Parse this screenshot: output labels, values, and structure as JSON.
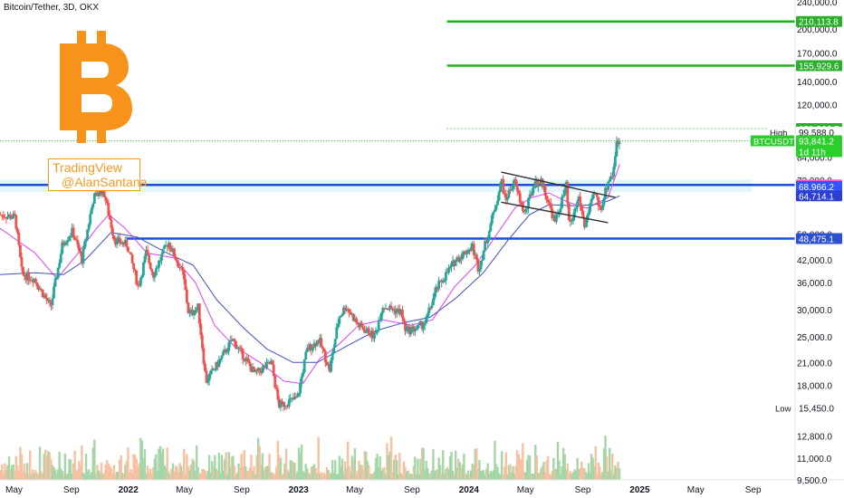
{
  "header": {
    "title": "Bitcoin/Tether, 3D, OKX"
  },
  "overlay": {
    "watermark_line1": "TradingView",
    "watermark_line2": "@AlanSantana",
    "logo": "bitcoin-logo-icon"
  },
  "colors": {
    "up": "#26a69a",
    "down": "#ef5350",
    "ema_fast": "#e040fb",
    "ema_slow": "#3f51b5",
    "support_line": "#1e4fd8",
    "target_line": "#16b816",
    "logo": "#f7931a",
    "watermark": "#f59a23",
    "volume_up": "#a5d6a7",
    "volume_down": "#f5c1a1"
  },
  "chart_data": {
    "type": "candlestick",
    "scale": "log",
    "ylim": [
      9500,
      240000
    ],
    "y_ticks": [
      "240,000.0",
      "200,000.0",
      "170,000.0",
      "140,000.0",
      "120,000.0",
      "84,000.0",
      "72,000.0",
      "50,000.0",
      "42,000.0",
      "36,000.0",
      "30,000.0",
      "25,000.0",
      "21,000.0",
      "18,000.0",
      "12,800.0",
      "11,000.0",
      "9,500.0"
    ],
    "x_ticks": [
      "May",
      "Sep",
      "2022",
      "May",
      "Sep",
      "2023",
      "May",
      "Sep",
      "2024",
      "May",
      "Sep",
      "2025",
      "May",
      "Sep"
    ],
    "price_path": [
      [
        "2021-04-01",
        57000
      ],
      [
        "2021-05-05",
        56000
      ],
      [
        "2021-05-20",
        38000
      ],
      [
        "2021-06-15",
        37000
      ],
      [
        "2021-07-20",
        30500
      ],
      [
        "2021-08-15",
        47000
      ],
      [
        "2021-09-05",
        51000
      ],
      [
        "2021-09-25",
        42000
      ],
      [
        "2021-10-20",
        64000
      ],
      [
        "2021-11-10",
        67500
      ],
      [
        "2021-12-04",
        48000
      ],
      [
        "2021-12-31",
        46500
      ],
      [
        "2022-01-24",
        35000
      ],
      [
        "2022-02-10",
        44000
      ],
      [
        "2022-02-25",
        38000
      ],
      [
        "2022-03-29",
        47500
      ],
      [
        "2022-04-30",
        38000
      ],
      [
        "2022-05-12",
        29000
      ],
      [
        "2022-06-01",
        30500
      ],
      [
        "2022-06-18",
        18500
      ],
      [
        "2022-07-15",
        21000
      ],
      [
        "2022-08-14",
        24500
      ],
      [
        "2022-09-10",
        21500
      ],
      [
        "2022-10-01",
        19400
      ],
      [
        "2022-11-05",
        21000
      ],
      [
        "2022-11-21",
        15700
      ],
      [
        "2022-12-31",
        16500
      ],
      [
        "2023-01-20",
        22800
      ],
      [
        "2023-02-15",
        24500
      ],
      [
        "2023-03-10",
        20000
      ],
      [
        "2023-03-30",
        28500
      ],
      [
        "2023-04-14",
        30800
      ],
      [
        "2023-05-10",
        27000
      ],
      [
        "2023-06-15",
        25000
      ],
      [
        "2023-07-01",
        30800
      ],
      [
        "2023-08-10",
        29500
      ],
      [
        "2023-08-20",
        26000
      ],
      [
        "2023-09-15",
        26500
      ],
      [
        "2023-10-01",
        27500
      ],
      [
        "2023-10-25",
        34500
      ],
      [
        "2023-12-05",
        42000
      ],
      [
        "2024-01-10",
        46000
      ],
      [
        "2024-01-23",
        39500
      ],
      [
        "2024-02-15",
        51500
      ],
      [
        "2024-03-13",
        72000
      ],
      [
        "2024-03-20",
        62500
      ],
      [
        "2024-04-08",
        71500
      ],
      [
        "2024-05-01",
        57000
      ],
      [
        "2024-05-21",
        70500
      ],
      [
        "2024-06-07",
        71000
      ],
      [
        "2024-07-05",
        54000
      ],
      [
        "2024-07-29",
        69000
      ],
      [
        "2024-08-05",
        52000
      ],
      [
        "2024-08-25",
        64000
      ],
      [
        "2024-09-06",
        53000
      ],
      [
        "2024-09-28",
        66000
      ],
      [
        "2024-10-10",
        59000
      ],
      [
        "2024-10-29",
        73000
      ],
      [
        "2024-11-06",
        75000
      ],
      [
        "2024-11-13",
        91000
      ],
      [
        "2024-11-19",
        94000
      ]
    ],
    "ema_fast_path": [
      [
        "2021-04-01",
        52000
      ],
      [
        "2021-06-15",
        44000
      ],
      [
        "2021-08-01",
        37000
      ],
      [
        "2021-09-10",
        43000
      ],
      [
        "2021-10-25",
        52000
      ],
      [
        "2021-11-20",
        57000
      ],
      [
        "2021-12-25",
        52000
      ],
      [
        "2022-02-10",
        44000
      ],
      [
        "2022-04-10",
        42500
      ],
      [
        "2022-05-25",
        36000
      ],
      [
        "2022-07-05",
        27000
      ],
      [
        "2022-08-15",
        23500
      ],
      [
        "2022-10-10",
        21000
      ],
      [
        "2022-12-01",
        18500
      ],
      [
        "2023-01-10",
        18200
      ],
      [
        "2023-02-15",
        21500
      ],
      [
        "2023-03-25",
        23500
      ],
      [
        "2023-05-10",
        27000
      ],
      [
        "2023-07-01",
        28000
      ],
      [
        "2023-08-30",
        27000
      ],
      [
        "2023-10-15",
        28000
      ],
      [
        "2023-12-01",
        35000
      ],
      [
        "2024-01-15",
        40500
      ],
      [
        "2024-03-01",
        50000
      ],
      [
        "2024-04-10",
        60000
      ],
      [
        "2024-05-15",
        64000
      ],
      [
        "2024-06-20",
        66000
      ],
      [
        "2024-08-01",
        62000
      ],
      [
        "2024-09-10",
        59500
      ],
      [
        "2024-10-10",
        62500
      ],
      [
        "2024-10-25",
        64000
      ],
      [
        "2024-11-19",
        80000
      ]
    ],
    "ema_slow_path": [
      [
        "2021-04-01",
        38000
      ],
      [
        "2021-06-15",
        38500
      ],
      [
        "2021-08-15",
        38000
      ],
      [
        "2021-10-01",
        42000
      ],
      [
        "2021-11-25",
        50500
      ],
      [
        "2022-01-20",
        49000
      ],
      [
        "2022-03-25",
        44000
      ],
      [
        "2022-05-20",
        40500
      ],
      [
        "2022-07-10",
        32000
      ],
      [
        "2022-09-05",
        26500
      ],
      [
        "2022-10-25",
        23000
      ],
      [
        "2022-12-20",
        21000
      ],
      [
        "2023-02-10",
        21000
      ],
      [
        "2023-04-15",
        23500
      ],
      [
        "2023-06-15",
        26000
      ],
      [
        "2023-08-15",
        27500
      ],
      [
        "2023-10-10",
        28500
      ],
      [
        "2023-12-05",
        32500
      ],
      [
        "2024-02-01",
        38500
      ],
      [
        "2024-03-25",
        48000
      ],
      [
        "2024-05-10",
        57000
      ],
      [
        "2024-06-20",
        61000
      ],
      [
        "2024-08-15",
        60500
      ],
      [
        "2024-09-25",
        61000
      ],
      [
        "2024-10-25",
        62500
      ],
      [
        "2024-11-19",
        64714
      ]
    ],
    "channel_upper": [
      [
        "2024-03-10",
        76000
      ],
      [
        "2024-11-10",
        64000
      ]
    ],
    "channel_lower": [
      [
        "2024-03-10",
        62000
      ],
      [
        "2024-10-25",
        54000
      ]
    ],
    "horizontal_lines": [
      {
        "label": "210,113.8",
        "value": 210113.8,
        "color": "#16b816",
        "style": "solid",
        "from": "2023-11-15"
      },
      {
        "label": "155,929.6",
        "value": 155929.6,
        "color": "#16b816",
        "style": "solid",
        "from": "2023-11-15"
      },
      {
        "label": "101,966.5",
        "value": 101966.5,
        "color": "#16b816",
        "style": "dotted",
        "from": "2023-11-15"
      },
      {
        "label": "69,636.6",
        "value": 69636.6,
        "color": "#1e4fd8",
        "style": "solid",
        "from": "2021-04-01"
      },
      {
        "label": "48,475.1",
        "value": 48475.1,
        "color": "#1e4fd8",
        "style": "solid",
        "from": "2021-12-28"
      }
    ],
    "price_tags": [
      {
        "label": "210,113.8",
        "value": 210113.8,
        "bg": "#2aaf2a",
        "fg": "#ffffff"
      },
      {
        "label": "155,929.6",
        "value": 155929.6,
        "bg": "#2aaf2a",
        "fg": "#ffffff"
      },
      {
        "label": "101,966.5",
        "value": 101966.5,
        "bg": "#2aaf2a",
        "fg": "#ffffff"
      },
      {
        "label": "99,588.0",
        "value": 99588.0,
        "bg": "#ffffff",
        "fg": "#131722",
        "side": "High"
      },
      {
        "label": "93,841.2",
        "value": 93841.2,
        "bg": "#2bcf2b",
        "fg": "#ffffff",
        "extra": "1d 11h",
        "side": "BTCUSDT"
      },
      {
        "label": "69,636.6",
        "value": 69636.6,
        "bg": "#ff5ec8",
        "fg": "#ffffff"
      },
      {
        "label": "68,966.2",
        "value": 68966.2,
        "bg": "#3355ff",
        "fg": "#ffffff"
      },
      {
        "label": "64,714.1",
        "value": 64714.1,
        "bg": "#2b3fd6",
        "fg": "#ffffff"
      },
      {
        "label": "48,475.1",
        "value": 48475.1,
        "bg": "#2b4fd0",
        "fg": "#ffffff"
      },
      {
        "label": "15,450.0",
        "value": 15450.0,
        "bg": "#ffffff",
        "fg": "#131722",
        "side": "Low"
      }
    ],
    "x_start": "2021-04-01",
    "x_end": "2025-11-30"
  }
}
